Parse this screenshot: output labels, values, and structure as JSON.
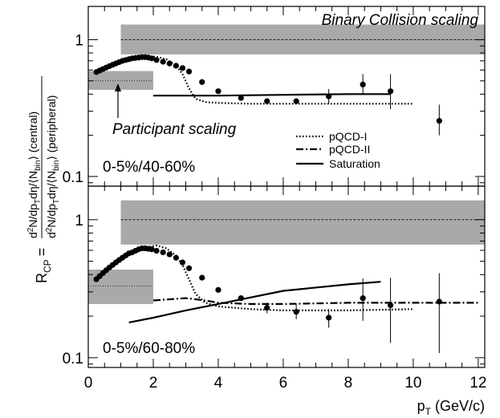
{
  "chart_data": {
    "type": "scatter",
    "x_axis": {
      "label": "p",
      "label_sub": "T",
      "label_units": " (GeV/c)",
      "range": [
        0,
        12.2
      ],
      "ticks": [
        0,
        2,
        4,
        6,
        8,
        10,
        12
      ],
      "tick_labels": [
        "0",
        "2",
        "4",
        "6",
        "8",
        "10",
        "12"
      ]
    },
    "y_axis": {
      "label_left": "R",
      "label_left_sub": "CP",
      "label_eq": "=",
      "numerator": "d²N/dpₜdη/⟨N₋ᵢₙ⟩ (central)",
      "numerator_parts": {
        "a": "d",
        "a_sup": "2",
        "b": "N/dp",
        "b_sub": "T",
        "c": "dη/⟨N",
        "c_sub": "bin",
        "d": "⟩ (central)"
      },
      "denominator_parts": {
        "a": "d",
        "a_sup": "2",
        "b": "N/dp",
        "b_sub": "T",
        "c": "dη/⟨N",
        "c_sub": "bin",
        "d": "⟩ (peripheral)"
      },
      "scale": "log",
      "range": [
        0.085,
        1.75
      ],
      "tick_labels": [
        "0.1",
        "1"
      ]
    },
    "annotations": {
      "binary": "Binary Collision scaling",
      "participant": "Participant scaling"
    },
    "legend": {
      "placement": "middle-right",
      "entries": [
        {
          "name": "pQCD-I",
          "style": "dotted"
        },
        {
          "name": "pQCD-II",
          "style": "dashdot"
        },
        {
          "name": "Saturation",
          "style": "solid"
        }
      ]
    },
    "panels": [
      {
        "label": "0-5%/40-60%",
        "binary_band": {
          "x": [
            1.0,
            12.2
          ],
          "y": [
            0.78,
            1.29
          ],
          "center": 1.0
        },
        "participant_band": {
          "x": [
            0,
            2.0
          ],
          "y": [
            0.43,
            0.59
          ],
          "center": 0.5
        },
        "data": {
          "x": [
            0.25,
            0.35,
            0.45,
            0.55,
            0.65,
            0.75,
            0.85,
            0.95,
            1.05,
            1.15,
            1.25,
            1.35,
            1.45,
            1.55,
            1.65,
            1.75,
            1.85,
            1.95,
            2.1,
            2.3,
            2.5,
            2.7,
            2.9,
            3.1,
            3.5,
            4.0,
            4.7,
            5.5,
            6.4,
            7.4,
            8.45,
            9.3,
            10.8
          ],
          "y": [
            0.58,
            0.595,
            0.61,
            0.625,
            0.64,
            0.655,
            0.67,
            0.685,
            0.7,
            0.71,
            0.72,
            0.73,
            0.735,
            0.74,
            0.745,
            0.745,
            0.74,
            0.73,
            0.71,
            0.69,
            0.67,
            0.645,
            0.62,
            0.585,
            0.49,
            0.42,
            0.375,
            0.355,
            0.355,
            0.385,
            0.47,
            0.42,
            0.255
          ],
          "err_low": [
            null,
            null,
            null,
            null,
            null,
            null,
            null,
            null,
            null,
            null,
            null,
            null,
            null,
            null,
            null,
            null,
            null,
            null,
            null,
            null,
            null,
            null,
            null,
            null,
            null,
            null,
            null,
            null,
            null,
            0.34,
            0.395,
            0.31,
            0.2
          ],
          "err_high": [
            null,
            null,
            null,
            null,
            null,
            null,
            null,
            null,
            null,
            null,
            null,
            null,
            null,
            null,
            null,
            null,
            null,
            null,
            null,
            null,
            null,
            null,
            null,
            null,
            null,
            null,
            null,
            null,
            null,
            0.435,
            0.56,
            0.56,
            0.335
          ]
        },
        "curves": [
          {
            "name": "pQCD-I",
            "style": "dotted",
            "x": [
              0.3,
              0.6,
              1.0,
              1.4,
              1.8,
              2.1,
              2.4,
              2.7,
              2.9,
              3.1,
              3.3,
              3.6,
              4.0,
              5.0,
              6.0,
              8.0,
              10.0
            ],
            "y": [
              0.59,
              0.63,
              0.68,
              0.72,
              0.75,
              0.75,
              0.72,
              0.65,
              0.56,
              0.44,
              0.37,
              0.35,
              0.345,
              0.34,
              0.34,
              0.34,
              0.34
            ]
          },
          {
            "name": "Saturation",
            "style": "solid",
            "x": [
              2.0,
              4.0,
              6.0,
              8.0,
              9.3
            ],
            "y": [
              0.39,
              0.39,
              0.395,
              0.4,
              0.4
            ]
          }
        ]
      },
      {
        "label": "0-5%/60-80%",
        "binary_band": {
          "x": [
            1.0,
            12.2
          ],
          "y": [
            0.66,
            1.38
          ],
          "center": 1.0
        },
        "participant_band": {
          "x": [
            0,
            2.0
          ],
          "y": [
            0.245,
            0.435
          ],
          "center": 0.33
        },
        "data": {
          "x": [
            0.25,
            0.35,
            0.45,
            0.55,
            0.65,
            0.75,
            0.85,
            0.95,
            1.05,
            1.15,
            1.25,
            1.35,
            1.45,
            1.55,
            1.65,
            1.75,
            1.85,
            1.95,
            2.1,
            2.3,
            2.5,
            2.7,
            2.9,
            3.1,
            3.5,
            4.0,
            4.7,
            5.5,
            6.4,
            7.4,
            8.45,
            9.3,
            10.8
          ],
          "y": [
            0.37,
            0.39,
            0.41,
            0.43,
            0.45,
            0.47,
            0.49,
            0.51,
            0.53,
            0.55,
            0.57,
            0.58,
            0.595,
            0.61,
            0.62,
            0.62,
            0.615,
            0.61,
            0.595,
            0.58,
            0.56,
            0.53,
            0.49,
            0.445,
            0.38,
            0.31,
            0.27,
            0.23,
            0.215,
            0.195,
            0.27,
            0.24,
            0.255
          ],
          "err_low": [
            null,
            null,
            null,
            null,
            null,
            null,
            null,
            null,
            null,
            null,
            null,
            null,
            null,
            null,
            null,
            null,
            null,
            null,
            null,
            null,
            null,
            null,
            null,
            null,
            null,
            null,
            null,
            0.21,
            0.19,
            0.165,
            0.185,
            0.128,
            0.108
          ],
          "err_high": [
            null,
            null,
            null,
            null,
            null,
            null,
            null,
            null,
            null,
            null,
            null,
            null,
            null,
            null,
            null,
            null,
            null,
            null,
            null,
            null,
            null,
            null,
            null,
            null,
            null,
            null,
            null,
            0.25,
            0.245,
            0.225,
            0.375,
            0.38,
            0.41
          ]
        },
        "curves": [
          {
            "name": "pQCD-I",
            "style": "dotted",
            "x": [
              0.3,
              0.6,
              1.0,
              1.4,
              1.8,
              2.1,
              2.4,
              2.7,
              2.9,
              3.1,
              3.3,
              3.6,
              4.0,
              5.0,
              6.0,
              8.0,
              10.0
            ],
            "y": [
              0.38,
              0.44,
              0.52,
              0.59,
              0.63,
              0.65,
              0.62,
              0.55,
              0.47,
              0.37,
              0.29,
              0.25,
              0.235,
              0.225,
              0.22,
              0.22,
              0.225
            ]
          },
          {
            "name": "pQCD-II",
            "style": "dashdot",
            "x": [
              2.0,
              3.0,
              3.6,
              4.0,
              5.0,
              6.0,
              8.0,
              10.0,
              12.0
            ],
            "y": [
              0.26,
              0.27,
              0.26,
              0.25,
              0.245,
              0.245,
              0.25,
              0.25,
              0.25
            ]
          },
          {
            "name": "Saturation",
            "style": "solid",
            "x": [
              1.25,
              2.0,
              3.0,
              4.0,
              6.0,
              8.0,
              9.0
            ],
            "y": [
              0.18,
              0.195,
              0.22,
              0.245,
              0.305,
              0.34,
              0.355
            ]
          }
        ]
      }
    ]
  }
}
